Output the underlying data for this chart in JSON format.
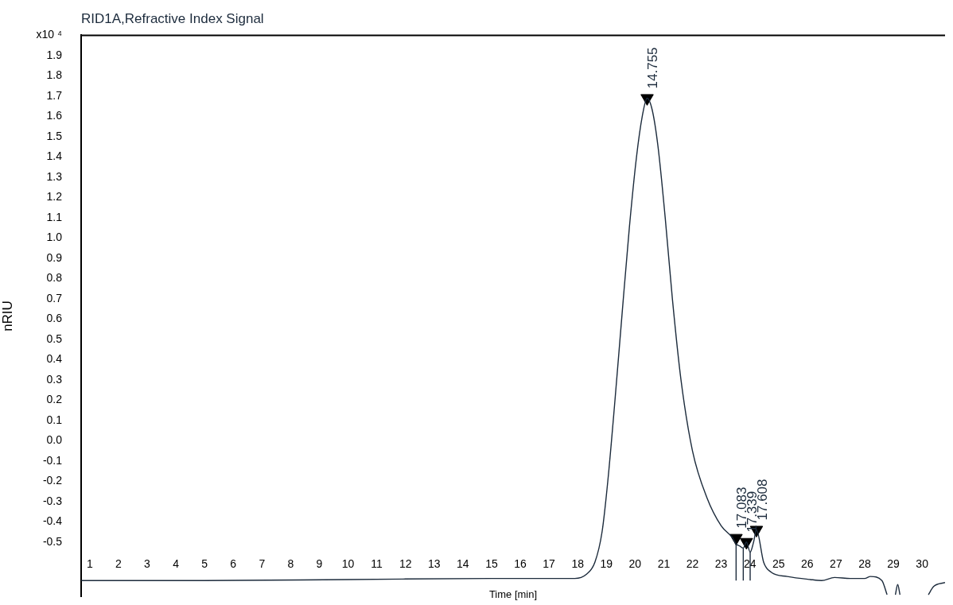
{
  "chart_data": {
    "type": "line",
    "title": "RID1A,Refractive Index Signal",
    "xlabel": "Time [min]",
    "ylabel": "nRIU",
    "xlim": [
      0.7,
      30.8
    ],
    "xticks": [
      1,
      2,
      3,
      4,
      5,
      6,
      7,
      8,
      9,
      10,
      11,
      12,
      13,
      14,
      15,
      16,
      17,
      18,
      19,
      20,
      21,
      22,
      23,
      24,
      25,
      26,
      27,
      28,
      29,
      30
    ],
    "ylim": [
      -0.77,
      2.0
    ],
    "yticks": [
      {
        "value": 2.0,
        "label": "x10 ⁴"
      },
      1.9,
      1.8,
      1.7,
      1.6,
      1.5,
      1.4,
      1.3,
      1.2,
      1.1,
      {
        "value": 1.0,
        "label": "1.0"
      },
      0.9,
      0.8,
      0.7,
      0.6,
      0.5,
      0.4,
      0.3,
      0.2,
      0.1,
      {
        "value": 0,
        "label": "0.0"
      },
      -0.1,
      -0.2,
      -0.3,
      -0.4,
      -0.5
    ],
    "grid": false,
    "legend": false,
    "series": [
      {
        "type": "line",
        "color": "#1c2b3c",
        "x": [
          0.7,
          5,
          10,
          15,
          17.9,
          18.3,
          18.6,
          18.85,
          19.05,
          19.3,
          19.55,
          19.8,
          20.05,
          20.25,
          20.42,
          20.6,
          20.8,
          21.05,
          21.3,
          21.6,
          22.0,
          22.5,
          23.0,
          23.4,
          23.52,
          23.65,
          23.77,
          23.88,
          24.01,
          24.13,
          24.23,
          24.48,
          24.75,
          25.3,
          26.1,
          26.5,
          26.95,
          27.5,
          28.0,
          28.2,
          28.6,
          28.78,
          28.9,
          29.07,
          29.15,
          29.23,
          29.5,
          30.22,
          30.4,
          30.8
        ],
        "values": [
          -0.69,
          -0.69,
          -0.685,
          -0.68,
          -0.68,
          -0.66,
          -0.6,
          -0.45,
          -0.2,
          0.2,
          0.63,
          1.05,
          1.4,
          1.6,
          1.69,
          1.63,
          1.45,
          1.1,
          0.7,
          0.3,
          -0.05,
          -0.28,
          -0.42,
          -0.48,
          -0.51,
          -0.52,
          -0.53,
          -0.5,
          -0.55,
          -0.5,
          -0.44,
          -0.6,
          -0.65,
          -0.67,
          -0.685,
          -0.69,
          -0.675,
          -0.68,
          -0.68,
          -0.67,
          -0.69,
          -0.76,
          null,
          -0.76,
          -0.71,
          -0.76,
          null,
          -0.76,
          -0.72,
          -0.7
        ]
      },
      {
        "type": "line",
        "color": "#1c2b3c",
        "x": [
          23.52,
          23.52,
          23.6,
          23.77,
          23.77,
          23.85,
          24.01,
          24.01
        ],
        "values": [
          -0.51,
          -0.69,
          null,
          -0.53,
          -0.69,
          null,
          -0.55,
          -0.69
        ]
      },
      {
        "type": "scatter",
        "color": "#000000",
        "marker": "triangle",
        "x": [
          20.42,
          23.52,
          23.88,
          24.23
        ],
        "values": [
          1.69,
          -0.48,
          -0.5,
          -0.44
        ]
      }
    ],
    "annotations": [
      {
        "text": "14.755",
        "x": 20.42,
        "y": 1.69
      },
      {
        "text": "17.083",
        "x": 23.52,
        "y": -0.48
      },
      {
        "text": "17.339",
        "x": 23.88,
        "y": -0.5
      },
      {
        "text": "17.608",
        "x": 24.23,
        "y": -0.44
      }
    ]
  }
}
